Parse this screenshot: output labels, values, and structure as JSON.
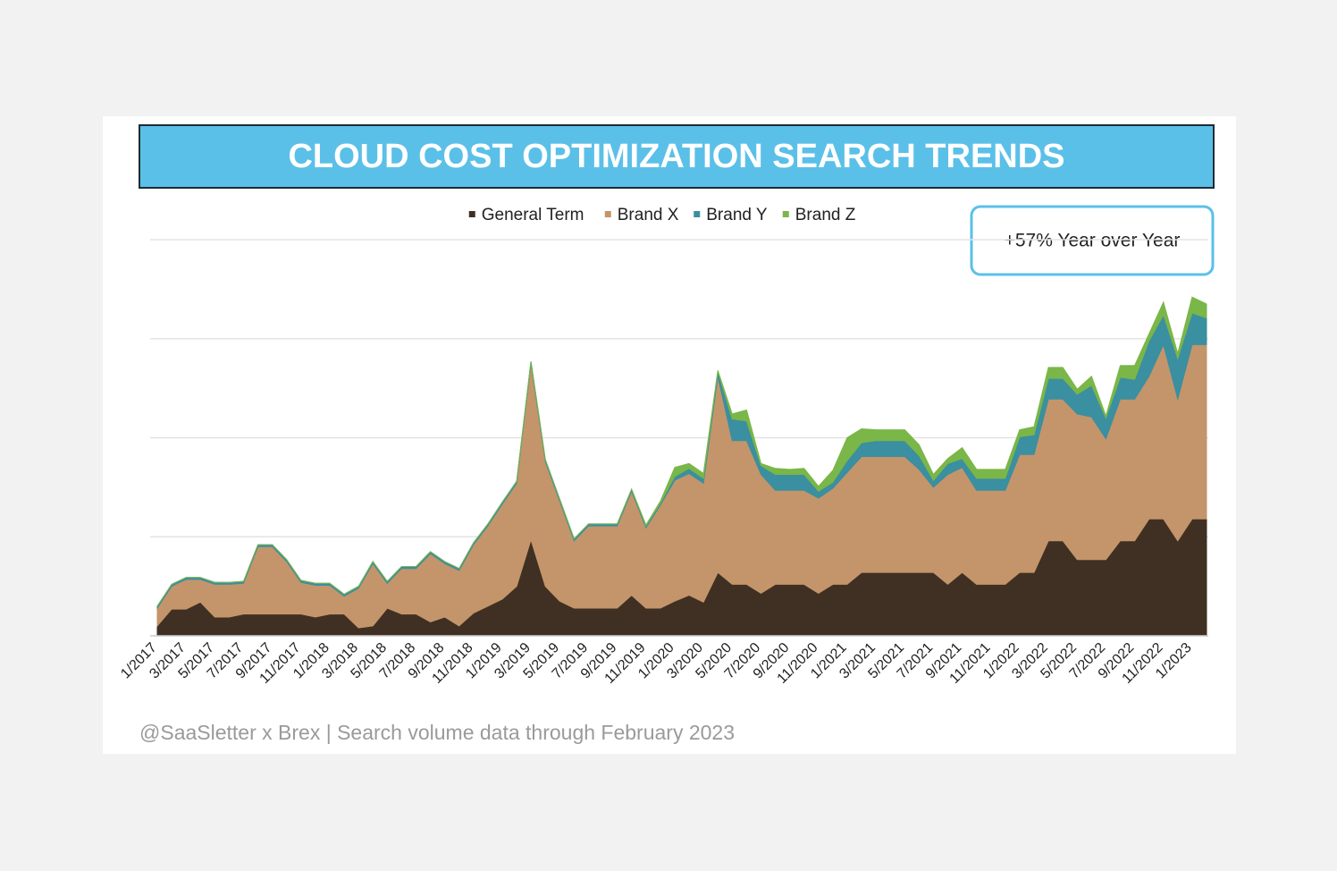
{
  "chart_data": {
    "type": "stacked_area",
    "title": "CLOUD COST OPTIMIZATION SEARCH TRENDS",
    "annotation": "+57% Year over Year",
    "footnote": "@SaaSletter x Brex | Search volume data through February 2023",
    "categories": [
      "1/2017",
      null,
      "3/2017",
      null,
      "5/2017",
      null,
      "7/2017",
      null,
      "9/2017",
      null,
      "11/2017",
      null,
      "1/2018",
      null,
      "3/2018",
      null,
      "5/2018",
      null,
      "7/2018",
      null,
      "9/2018",
      null,
      "11/2018",
      null,
      "1/2019",
      null,
      "3/2019",
      null,
      "5/2019",
      null,
      "7/2019",
      null,
      "9/2019",
      null,
      "11/2019",
      null,
      "1/2020",
      null,
      "3/2020",
      null,
      "5/2020",
      null,
      "7/2020",
      null,
      "9/2020",
      null,
      "11/2020",
      null,
      "1/2021",
      null,
      "3/2021",
      null,
      "5/2021",
      null,
      "7/2021",
      null,
      "9/2021",
      null,
      "11/2021",
      null,
      "1/2022",
      null,
      "3/2022",
      null,
      "5/2022",
      null,
      "7/2022",
      null,
      "9/2022",
      null,
      "11/2022",
      null,
      "1/2023",
      null
    ],
    "series": [
      {
        "name": "General Term",
        "color": "#3f3023",
        "values": [
          10,
          27,
          27,
          34,
          19,
          19,
          22,
          22,
          22,
          22,
          22,
          19,
          22,
          22,
          8,
          10,
          28,
          22,
          22,
          14,
          19,
          10,
          23,
          30,
          37,
          50,
          97,
          50,
          35,
          28,
          28,
          28,
          28,
          41,
          28,
          28,
          35,
          41,
          34,
          64,
          52,
          52,
          43,
          52,
          52,
          52,
          43,
          52,
          52,
          64,
          64,
          64,
          64,
          64,
          64,
          52,
          64,
          52,
          52,
          52,
          64,
          64,
          96,
          96,
          77,
          77,
          77,
          96,
          96,
          118,
          118,
          96,
          118,
          118
        ]
      },
      {
        "name": "Brand X",
        "color": "#c4956a",
        "values": [
          18,
          23,
          30,
          23,
          33,
          33,
          31,
          68,
          68,
          53,
          32,
          32,
          29,
          18,
          40,
          63,
          25,
          46,
          46,
          69,
          54,
          56,
          69,
          81,
          96,
          104,
          178,
          126,
          101,
          68,
          83,
          83,
          83,
          105,
          81,
          104,
          122,
          123,
          120,
          198,
          145,
          145,
          120,
          95,
          95,
          95,
          96,
          97,
          113,
          117,
          117,
          117,
          117,
          104,
          86,
          111,
          106,
          95,
          95,
          95,
          119,
          119,
          143,
          143,
          147,
          144,
          122,
          143,
          143,
          144,
          176,
          143,
          176,
          176
        ]
      },
      {
        "name": "Brand Y",
        "color": "#3a8fa0",
        "values": [
          2,
          2,
          2,
          2,
          2,
          2,
          2,
          2,
          2,
          2,
          2,
          2,
          2,
          2,
          2,
          2,
          2,
          2,
          2,
          2,
          2,
          2,
          2,
          2,
          2,
          2,
          2,
          2,
          2,
          2,
          2,
          2,
          2,
          2,
          2,
          2,
          4,
          5,
          5,
          5,
          22,
          20,
          9,
          16,
          16,
          16,
          7,
          6,
          12,
          14,
          16,
          16,
          16,
          14,
          7,
          11,
          9,
          12,
          12,
          12,
          18,
          20,
          21,
          21,
          20,
          32,
          21,
          22,
          20,
          36,
          30,
          41,
          32,
          27
        ]
      },
      {
        "name": "Brand Z",
        "color": "#7ab648",
        "values": [
          0,
          0,
          0,
          0,
          0,
          0,
          0,
          0,
          0,
          0,
          0,
          0,
          0,
          0,
          0,
          0,
          0,
          0,
          0,
          0,
          0,
          0,
          0,
          0,
          0,
          0,
          0,
          0,
          0,
          0,
          0,
          0,
          0,
          0,
          1,
          2,
          9,
          5,
          5,
          1,
          5,
          11,
          2,
          6,
          5,
          6,
          5,
          12,
          23,
          14,
          11,
          11,
          11,
          11,
          6,
          5,
          11,
          9,
          9,
          9,
          7,
          8,
          11,
          11,
          5,
          9,
          2,
          12,
          14,
          7,
          13,
          5,
          16,
          14
        ]
      }
    ],
    "ylim": [
      0,
      400
    ],
    "yticks": [
      0,
      100,
      200,
      300,
      400
    ],
    "ytick_labels": false,
    "grid": true
  }
}
